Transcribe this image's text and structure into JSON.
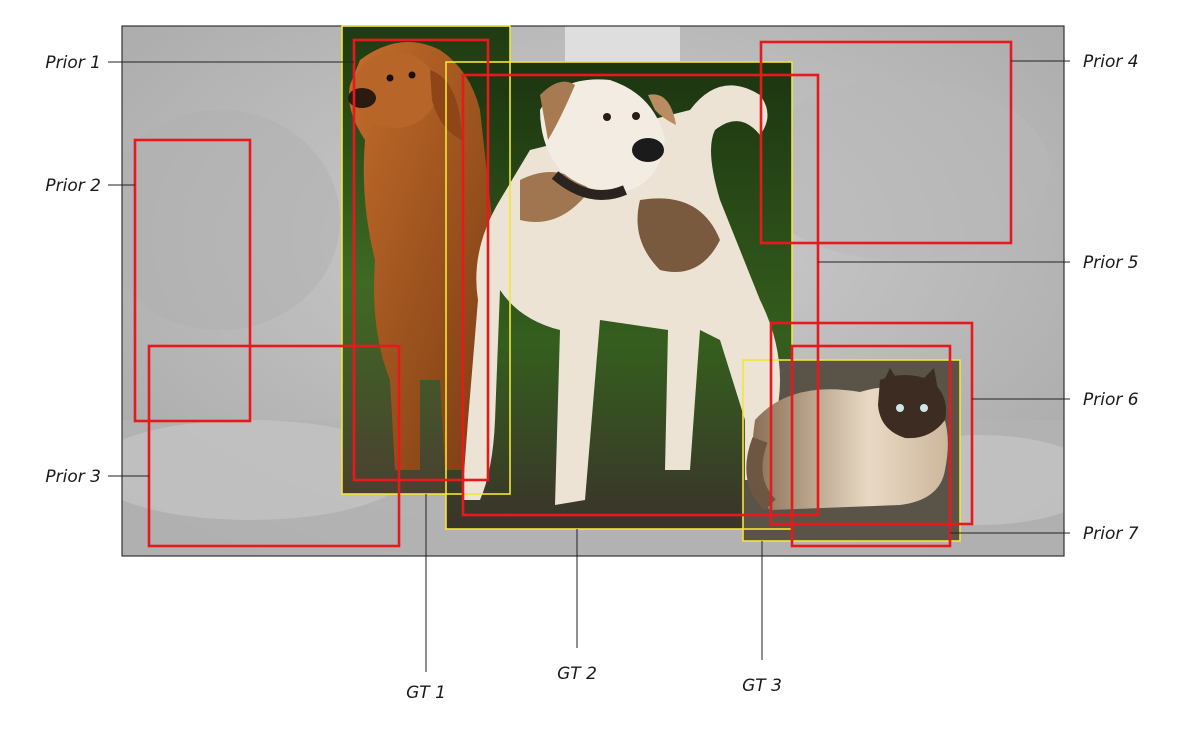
{
  "priors": [
    {
      "id": "prior-1",
      "label": "Prior 1"
    },
    {
      "id": "prior-2",
      "label": "Prior 2"
    },
    {
      "id": "prior-3",
      "label": "Prior 3"
    },
    {
      "id": "prior-4",
      "label": "Prior 4"
    },
    {
      "id": "prior-5",
      "label": "Prior 5"
    },
    {
      "id": "prior-6",
      "label": "Prior 6"
    },
    {
      "id": "prior-7",
      "label": "Prior 7"
    }
  ],
  "ground_truths": [
    {
      "id": "gt-1",
      "label": "GT 1"
    },
    {
      "id": "gt-2",
      "label": "GT 2"
    },
    {
      "id": "gt-3",
      "label": "GT 3"
    }
  ],
  "colors": {
    "prior_box": "#e8191c",
    "gt_box": "#f2e632",
    "leader_line": "#222222",
    "photo_border": "#333333",
    "background_gray": "#bdbdbd"
  },
  "scene": {
    "photo_subjects": [
      "golden-retriever",
      "white-brown-dog",
      "himalayan-cat"
    ],
    "background": "grayscale outdoor path with grass"
  }
}
